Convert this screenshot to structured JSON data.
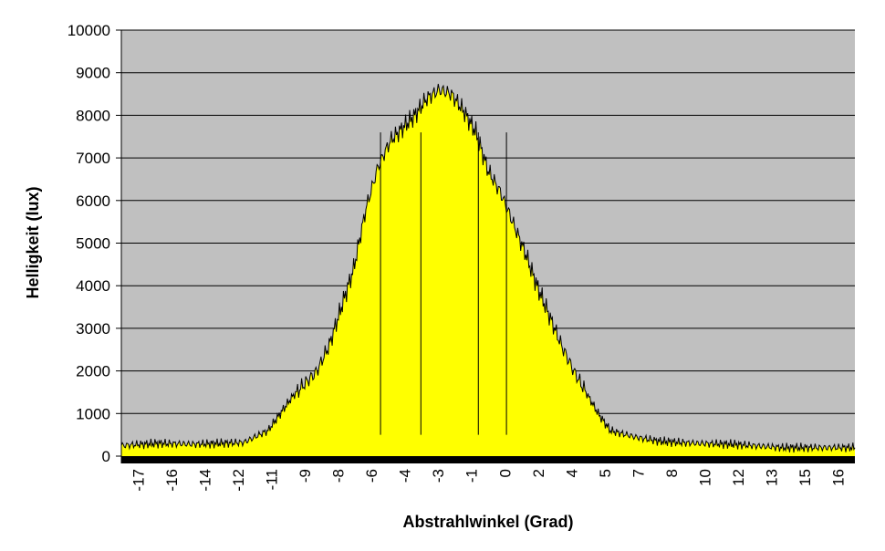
{
  "chart_data": {
    "type": "area",
    "title": "",
    "xlabel": "Abstrahlwinkel (Grad)",
    "ylabel": "Helligkeit (lux)",
    "ylim": [
      0,
      10000
    ],
    "yticks": [
      0,
      1000,
      2000,
      3000,
      4000,
      5000,
      6000,
      7000,
      8000,
      9000,
      10000
    ],
    "x_tick_labels": [
      "-17",
      "-16",
      "-14",
      "-12",
      "-11",
      "-9",
      "-8",
      "-6",
      "-4",
      "-3",
      "-1",
      "0",
      "2",
      "4",
      "5",
      "7",
      "8",
      "10",
      "12",
      "13",
      "15",
      "16"
    ],
    "grid": true,
    "legend": "none",
    "colors": {
      "fill": "#ffff00",
      "line": "#000000",
      "plot_background": "#c0c0c0",
      "gridline": "#000000"
    },
    "series": [
      {
        "x_index": [
          0,
          3,
          6,
          8,
          10,
          12,
          14,
          16,
          17,
          18,
          19,
          20,
          21,
          22,
          23,
          24,
          25,
          26,
          27,
          28,
          29,
          30,
          31,
          32,
          33,
          34,
          35,
          36,
          37,
          38,
          39,
          40,
          42,
          44,
          47,
          50,
          54,
          60
        ],
        "values": [
          250,
          300,
          280,
          300,
          320,
          600,
          1400,
          2000,
          2600,
          3500,
          4400,
          5800,
          6800,
          7400,
          7700,
          8000,
          8400,
          8600,
          8500,
          8100,
          7600,
          6700,
          6200,
          5500,
          4800,
          4000,
          3300,
          2600,
          2000,
          1500,
          1000,
          600,
          450,
          350,
          300,
          280,
          200,
          200
        ]
      }
    ]
  }
}
